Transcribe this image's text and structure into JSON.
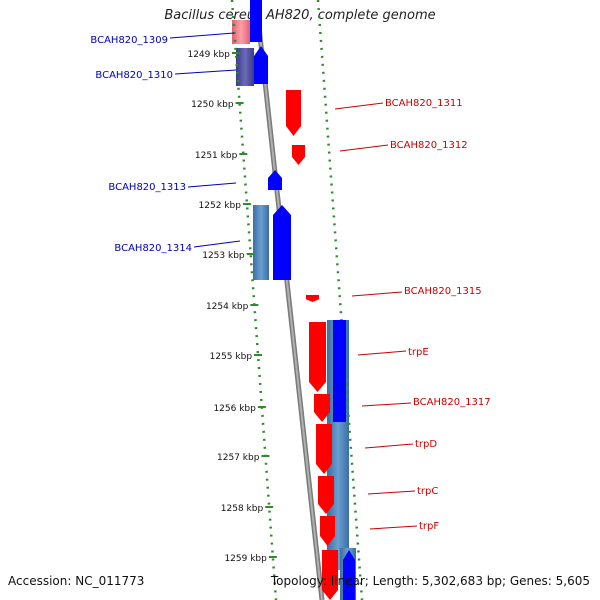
{
  "title": "Bacillus cereus AH820, complete genome",
  "footer": {
    "accession": "Accession: NC_011773",
    "info": "Topology: linear; Length: 5,302,683 bp; Genes: 5,605"
  },
  "colors": {
    "forward_gene": "#ff0000",
    "reverse_gene": "#0000ff",
    "forward_label": "#cc0000",
    "reverse_label": "#0000bb",
    "rna_region": "#4f86bb",
    "axis_ticks": "#2e8b2e",
    "backbone": "#808080"
  },
  "kbp_ticks": [
    {
      "label": "1249 kbp",
      "value": 1249
    },
    {
      "label": "1250 kbp",
      "value": 1250
    },
    {
      "label": "1251 kbp",
      "value": 1251
    },
    {
      "label": "1252 kbp",
      "value": 1252
    },
    {
      "label": "1253 kbp",
      "value": 1253
    },
    {
      "label": "1254 kbp",
      "value": 1254
    },
    {
      "label": "1255 kbp",
      "value": 1255
    },
    {
      "label": "1256 kbp",
      "value": 1256
    },
    {
      "label": "1257 kbp",
      "value": 1257
    },
    {
      "label": "1258 kbp",
      "value": 1258
    },
    {
      "label": "1259 kbp",
      "value": 1259
    }
  ],
  "genes_left": [
    {
      "name": "BCAH820_1309"
    },
    {
      "name": "BCAH820_1310"
    },
    {
      "name": "BCAH820_1313"
    },
    {
      "name": "BCAH820_1314"
    }
  ],
  "genes_right": [
    {
      "name": "BCAH820_1311"
    },
    {
      "name": "BCAH820_1312"
    },
    {
      "name": "BCAH820_1315"
    },
    {
      "name": "trpE"
    },
    {
      "name": "BCAH820_1317"
    },
    {
      "name": "trpD"
    },
    {
      "name": "trpC"
    },
    {
      "name": "trpF"
    }
  ]
}
